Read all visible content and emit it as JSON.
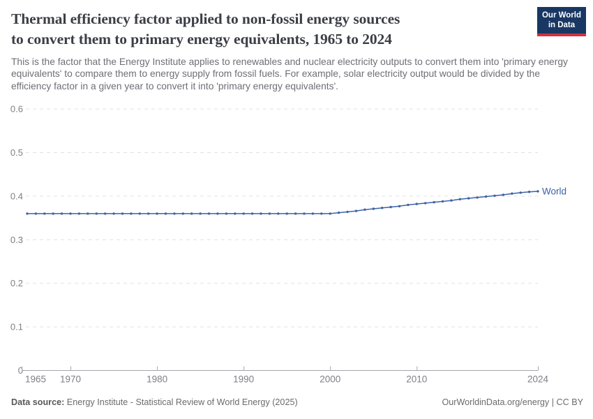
{
  "header": {
    "title_line1": "Thermal efficiency factor applied to non-fossil energy sources",
    "title_line2": "to convert them to primary energy equivalents, 1965 to 2024",
    "subtitle": "This is the factor that the Energy Institute applies to renewables and nuclear electricity outputs to convert them into 'primary energy equivalents' to compare them to energy supply from fossil fuels. For example, solar electricity output would be divided by the efficiency factor in a given year to convert it into 'primary energy equivalents'.",
    "logo": {
      "line1": "Our World",
      "line2": "in Data",
      "bg_color": "#183762",
      "accent_color": "#d0323f"
    }
  },
  "chart_data": {
    "type": "line",
    "title": "Thermal efficiency factor applied to non-fossil energy sources to convert them to primary energy equivalents, 1965 to 2024",
    "xlabel": "",
    "ylabel": "",
    "xlim": [
      1965,
      2024
    ],
    "ylim": [
      0,
      0.6
    ],
    "xticks": [
      1965,
      1970,
      1980,
      1990,
      2000,
      2010,
      2024
    ],
    "yticks": [
      0,
      0.1,
      0.2,
      0.3,
      0.4,
      0.5,
      0.6
    ],
    "grid": "horizontal-dashed",
    "legend_position": "line-end-label",
    "series": [
      {
        "name": "World",
        "color": "#3d63a5",
        "x": [
          1965,
          1966,
          1967,
          1968,
          1969,
          1970,
          1971,
          1972,
          1973,
          1974,
          1975,
          1976,
          1977,
          1978,
          1979,
          1980,
          1981,
          1982,
          1983,
          1984,
          1985,
          1986,
          1987,
          1988,
          1989,
          1990,
          1991,
          1992,
          1993,
          1994,
          1995,
          1996,
          1997,
          1998,
          1999,
          2000,
          2001,
          2002,
          2003,
          2004,
          2005,
          2006,
          2007,
          2008,
          2009,
          2010,
          2011,
          2012,
          2013,
          2014,
          2015,
          2016,
          2017,
          2018,
          2019,
          2020,
          2021,
          2022,
          2023,
          2024
        ],
        "values": [
          0.36,
          0.36,
          0.36,
          0.36,
          0.36,
          0.36,
          0.36,
          0.36,
          0.36,
          0.36,
          0.36,
          0.36,
          0.36,
          0.36,
          0.36,
          0.36,
          0.36,
          0.36,
          0.36,
          0.36,
          0.36,
          0.36,
          0.36,
          0.36,
          0.36,
          0.36,
          0.36,
          0.36,
          0.36,
          0.36,
          0.36,
          0.36,
          0.36,
          0.36,
          0.36,
          0.36,
          0.362,
          0.364,
          0.366,
          0.369,
          0.371,
          0.373,
          0.375,
          0.377,
          0.38,
          0.382,
          0.384,
          0.386,
          0.388,
          0.39,
          0.393,
          0.395,
          0.397,
          0.399,
          0.401,
          0.403,
          0.406,
          0.408,
          0.41,
          0.411
        ]
      }
    ]
  },
  "footer": {
    "source_label": "Data source:",
    "source_text": " Energy Institute - Statistical Review of World Energy (2025)",
    "credit": "OurWorldinData.org/energy | CC BY"
  }
}
